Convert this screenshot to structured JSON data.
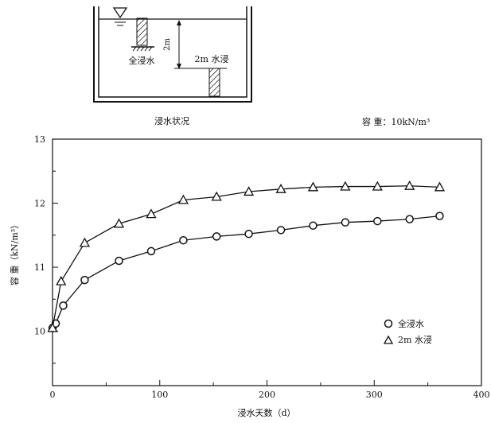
{
  "chart_data": {
    "type": "line",
    "x_axis": {
      "label": "浸水天数（d）",
      "min": 0,
      "max": 400,
      "ticks": [
        0,
        100,
        200,
        300,
        400
      ]
    },
    "y_axis": {
      "label": "容  重（kN/m³）",
      "min": 9.15,
      "max": 13,
      "ticks": [
        10,
        11,
        12,
        13
      ]
    },
    "annotation": "容  重：10kN/m³",
    "legend_position": "lower-right",
    "series": [
      {
        "name": "全浸水",
        "marker": "circle",
        "x": [
          0,
          3,
          10,
          30,
          62,
          92,
          122,
          153,
          183,
          213,
          243,
          273,
          303,
          333,
          361
        ],
        "y": [
          10.05,
          10.12,
          10.4,
          10.8,
          11.1,
          11.25,
          11.42,
          11.48,
          11.52,
          11.58,
          11.65,
          11.7,
          11.72,
          11.75,
          11.8
        ]
      },
      {
        "name": "2m 水浸",
        "marker": "triangle",
        "x": [
          0,
          8,
          30,
          62,
          92,
          122,
          153,
          183,
          213,
          243,
          273,
          303,
          333,
          361
        ],
        "y": [
          10.05,
          10.78,
          11.38,
          11.68,
          11.83,
          12.05,
          12.1,
          12.18,
          12.22,
          12.25,
          12.26,
          12.26,
          12.27,
          12.25
        ]
      }
    ]
  },
  "diagram": {
    "caption": "浸水状况",
    "label_full": "全浸水",
    "label_depth": "2m",
    "label_partial": "2m 水浸"
  }
}
